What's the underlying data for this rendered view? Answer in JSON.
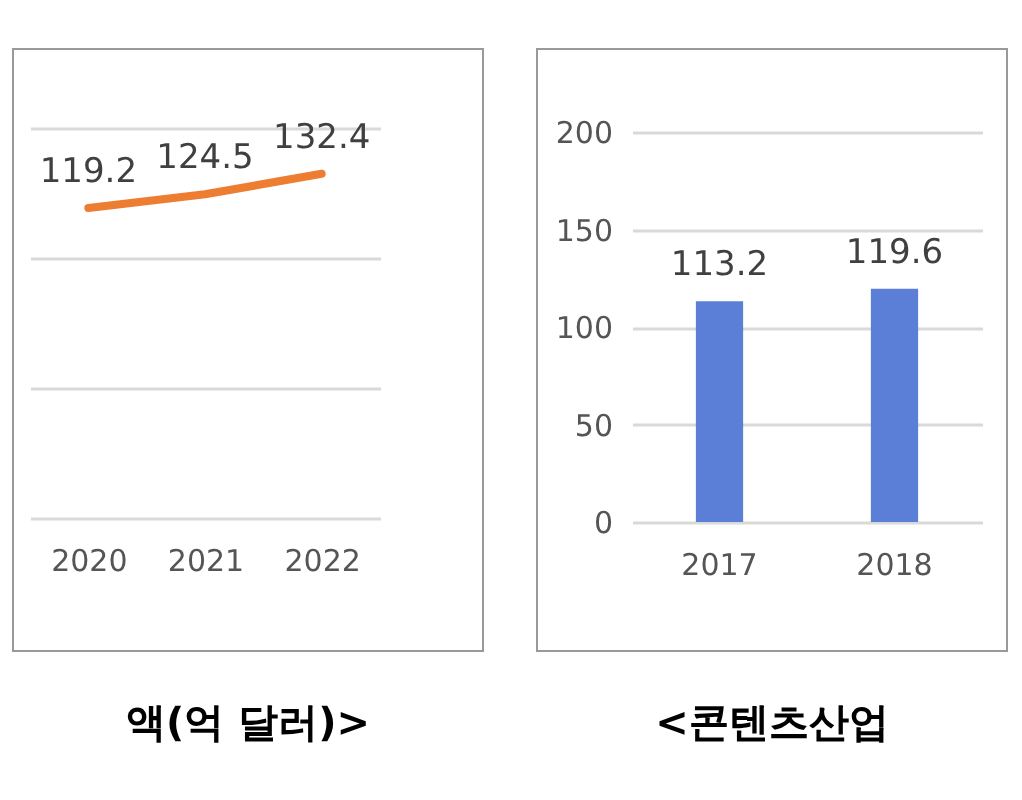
{
  "chart_data": [
    {
      "type": "line",
      "title": "액(억 달러)>",
      "categories": [
        "2020",
        "2021",
        "2022"
      ],
      "series": [
        {
          "color": "#ed7d31",
          "values": [
            119.2,
            124.5,
            132.4
          ]
        }
      ],
      "ylim": [
        0,
        150
      ],
      "yticks": [
        {
          "value": 0,
          "label": null
        },
        {
          "value": 50,
          "label": null
        },
        {
          "value": 100,
          "label": null
        },
        {
          "value": 150,
          "label": null
        }
      ],
      "tick_labels": "x",
      "grid": "y",
      "data_labels": true,
      "legend": false
    },
    {
      "type": "bar",
      "title": "<콘텐츠산업",
      "categories": [
        "2017",
        "2018"
      ],
      "series": [
        {
          "color": "#5b7fd6",
          "values": [
            113.2,
            119.6
          ]
        }
      ],
      "ylim": [
        0,
        200
      ],
      "yticks": [
        0,
        50,
        100,
        150,
        200
      ],
      "grid": "y",
      "data_labels": true,
      "legend": false
    }
  ]
}
